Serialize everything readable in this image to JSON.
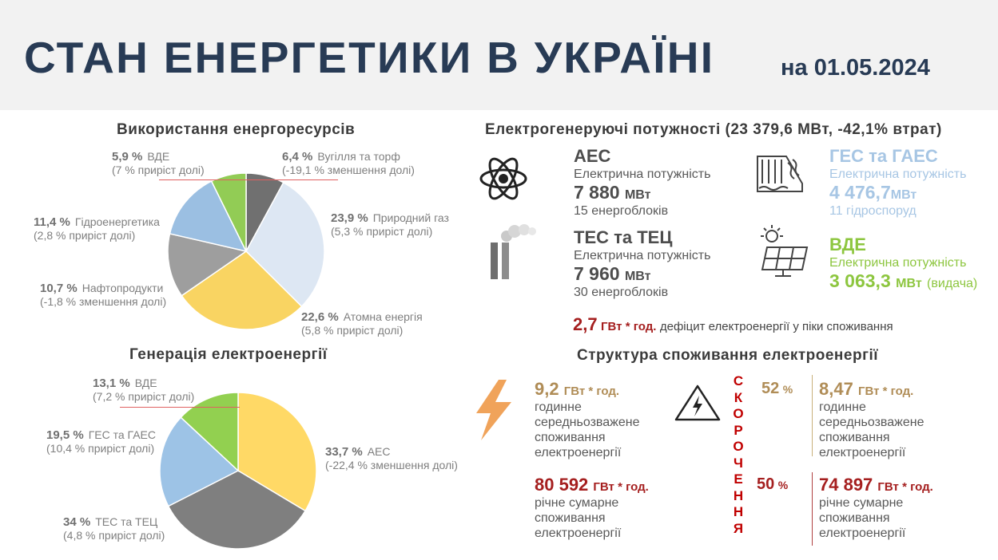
{
  "header": {
    "title": "СТАН ЕНЕРГЕТИКИ В УКРАЇНІ",
    "date": "на 01.05.2024"
  },
  "resources": {
    "title": "Використання енергоресурсів",
    "items": [
      {
        "pct": "6,4 %",
        "name": "Вугілля та торф",
        "note": "(-19,1 % зменшення долі)",
        "value": 6.4,
        "color": "#707070"
      },
      {
        "pct": "23,9 %",
        "name": "Природний газ",
        "note": "(5,3 % приріст долі)",
        "value": 23.9,
        "color": "#dde7f3"
      },
      {
        "pct": "22,6 %",
        "name": "Атомна енергія",
        "note": "(5,8 % приріст долі)",
        "value": 22.6,
        "color": "#f9d462"
      },
      {
        "pct": "10,7 %",
        "name": "Нафтопродукти",
        "note": "(-1,8 % зменшення долі)",
        "value": 10.7,
        "color": "#9e9e9e"
      },
      {
        "pct": "11,4 %",
        "name": "Гідроенергетика",
        "note": "(2,8 % приріст долі)",
        "value": 11.4,
        "color": "#9bbfe2"
      },
      {
        "pct": "5,9 %",
        "name": "ВДЕ",
        "note": "(7 % приріст долі)",
        "value": 5.9,
        "color": "#92cc55"
      }
    ]
  },
  "generation": {
    "title": "Генерація електроенергії",
    "items": [
      {
        "pct": "33,7 %",
        "name": "АЕС",
        "note": "(-22,4 % зменшення долі)",
        "value": 33.7,
        "color": "#ffd966"
      },
      {
        "pct": "34 %",
        "name": "ТЕС та ТЕЦ",
        "note": "(4,8 % приріст долі)",
        "value": 34,
        "color": "#7f7f7f"
      },
      {
        "pct": "19,5 %",
        "name": "ГЕС та ГАЕС",
        "note": "(10,4 % приріст долі)",
        "value": 19.5,
        "color": "#9dc3e6"
      },
      {
        "pct": "13,1 %",
        "name": "ВДЕ",
        "note": "(7,2 % приріст долі)",
        "value": 13.1,
        "color": "#92d050"
      }
    ]
  },
  "capacity": {
    "title": "Електрогенеруючі потужності (23 379,6 МВт, -42,1% втрат)",
    "aes": {
      "name": "АЕС",
      "label": "Електрична потужність",
      "value": "7 880",
      "unit": "МВт",
      "sub": "15 енергоблоків",
      "icon": "atom-icon"
    },
    "tes": {
      "name": "ТЕС та ТЕЦ",
      "label": "Електрична потужність",
      "value": "7 960",
      "unit": "МВт",
      "sub": "30 енергоблоків",
      "icon": "power-plant-icon"
    },
    "ges": {
      "name": "ГЕС та ГАЕС",
      "label": "Електрична потужність",
      "value": "4 476,7",
      "unit": "МВт",
      "sub": "11 гідроспоруд",
      "icon": "dam-icon"
    },
    "vde": {
      "name": "ВДЕ",
      "label": "Електрична потужність",
      "value": "3 063,3",
      "unit": "МВт",
      "extra": "(видача)",
      "icon": "solar-panel-icon"
    },
    "deficit": {
      "value": "2,7",
      "unit": "ГВт * год.",
      "text": "дефіцит електроенергії у піки споживання"
    }
  },
  "consumption": {
    "title": "Структура споживання електроенергії",
    "vertical": "СКОРОЧЕННЯ",
    "hourly_before": {
      "value": "9,2",
      "unit": "ГВт * год.",
      "lines": [
        "годинне",
        "середньозважене",
        "споживання",
        "електроенергії"
      ]
    },
    "hourly_after": {
      "value": "8,47",
      "unit": "ГВт * год.",
      "lines": [
        "годинне",
        "середньозважене",
        "споживання",
        "електроенергії"
      ]
    },
    "hourly_pct": {
      "value": "52",
      "unit": "%"
    },
    "annual_before": {
      "value": "80 592",
      "unit": "ГВт * год.",
      "lines": [
        "річне  сумарне",
        "споживання",
        "електроенергії"
      ]
    },
    "annual_after": {
      "value": "74 897",
      "unit": "ГВт * год.",
      "lines": [
        "річне  сумарне",
        "споживання",
        "електроенергії"
      ]
    },
    "annual_pct": {
      "value": "50",
      "unit": "%"
    }
  }
}
